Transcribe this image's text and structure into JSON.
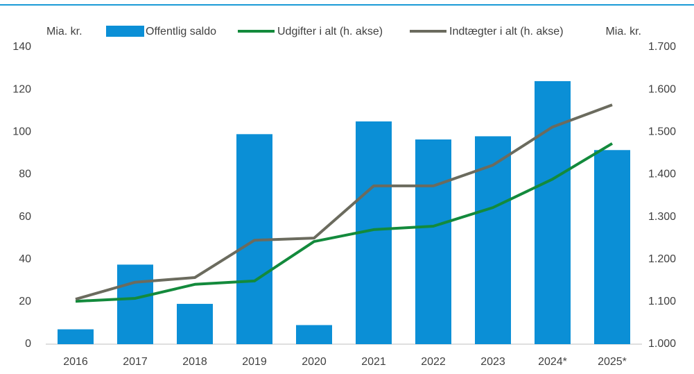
{
  "chart_data": {
    "type": "bar",
    "y_label": "Mia. kr.",
    "y2_label": "Mia. kr.",
    "categories": [
      "2016",
      "2017",
      "2018",
      "2019",
      "2020",
      "2021",
      "2022",
      "2023",
      "2024*",
      "2025*"
    ],
    "series": [
      {
        "name": "Offentlig saldo",
        "type": "bar",
        "color": "#0b8fd6",
        "values": [
          7,
          37.5,
          19,
          99,
          9,
          105,
          96.5,
          98,
          124,
          91.5
        ]
      },
      {
        "name": "Udgifter i alt (h. akse)",
        "type": "line",
        "axis": "y2",
        "color": "#138a3c",
        "values": [
          1101,
          1108,
          1141,
          1149,
          1242,
          1270,
          1278,
          1322,
          1389,
          1473
        ]
      },
      {
        "name": "Indtægter i alt (h. akse)",
        "type": "line",
        "axis": "y2",
        "color": "#6b6b5e",
        "values": [
          1106,
          1146,
          1157,
          1245,
          1250,
          1373,
          1373,
          1422,
          1512,
          1564
        ]
      }
    ],
    "ylim": [
      0,
      140
    ],
    "yticks": [
      0,
      20,
      40,
      60,
      80,
      100,
      120,
      140
    ],
    "y2lim": [
      1000,
      1700
    ],
    "y2ticks": [
      {
        "value": 1000,
        "label": "1.000"
      },
      {
        "value": 1100,
        "label": "1.100"
      },
      {
        "value": 1200,
        "label": "1.200"
      },
      {
        "value": 1300,
        "label": "1.300"
      },
      {
        "value": 1400,
        "label": "1.400"
      },
      {
        "value": 1500,
        "label": "1.500"
      },
      {
        "value": 1600,
        "label": "1.600"
      },
      {
        "value": 1700,
        "label": "1.700"
      }
    ],
    "grid": false,
    "legend": "top"
  }
}
